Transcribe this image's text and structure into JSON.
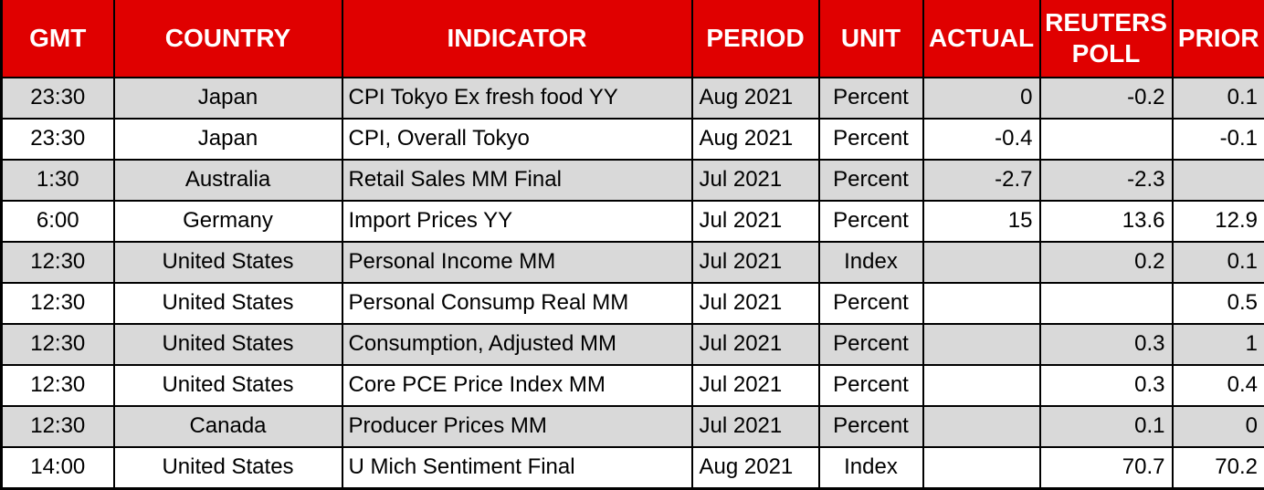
{
  "colors": {
    "header_bg": "#E00000",
    "header_text": "#FFFFFF",
    "row_stripe_bg": "#D9D9D9",
    "row_bg": "#FFFFFF",
    "grid_border": "#000000",
    "cell_text": "#000000"
  },
  "chart_data": {
    "type": "table",
    "columns": [
      "GMT",
      "COUNTRY",
      "INDICATOR",
      "PERIOD",
      "UNIT",
      "ACTUAL",
      "REUTERS POLL",
      "PRIOR"
    ],
    "rows": [
      [
        "23:30",
        "Japan",
        "CPI Tokyo Ex fresh food YY",
        "Aug 2021",
        "Percent",
        "0",
        "-0.2",
        "0.1"
      ],
      [
        "23:30",
        "Japan",
        "CPI, Overall Tokyo",
        "Aug 2021",
        "Percent",
        "-0.4",
        "",
        "-0.1"
      ],
      [
        "1:30",
        "Australia",
        "Retail Sales MM Final",
        "Jul 2021",
        "Percent",
        "-2.7",
        "-2.3",
        ""
      ],
      [
        "6:00",
        "Germany",
        "Import Prices YY",
        "Jul 2021",
        "Percent",
        "15",
        "13.6",
        "12.9"
      ],
      [
        "12:30",
        "United States",
        "Personal Income MM",
        "Jul 2021",
        "Index",
        "",
        "0.2",
        "0.1"
      ],
      [
        "12:30",
        "United States",
        "Personal Consump Real MM",
        "Jul 2021",
        "Percent",
        "",
        "",
        "0.5"
      ],
      [
        "12:30",
        "United States",
        "Consumption, Adjusted MM",
        "Jul 2021",
        "Percent",
        "",
        "0.3",
        "1"
      ],
      [
        "12:30",
        "United States",
        "Core PCE Price Index MM",
        "Jul 2021",
        "Percent",
        "",
        "0.3",
        "0.4"
      ],
      [
        "12:30",
        "Canada",
        "Producer Prices MM",
        "Jul 2021",
        "Percent",
        "",
        "0.1",
        "0"
      ],
      [
        "14:00",
        "United States",
        "U Mich Sentiment Final",
        "Aug 2021",
        "Index",
        "",
        "70.7",
        "70.2"
      ]
    ]
  }
}
